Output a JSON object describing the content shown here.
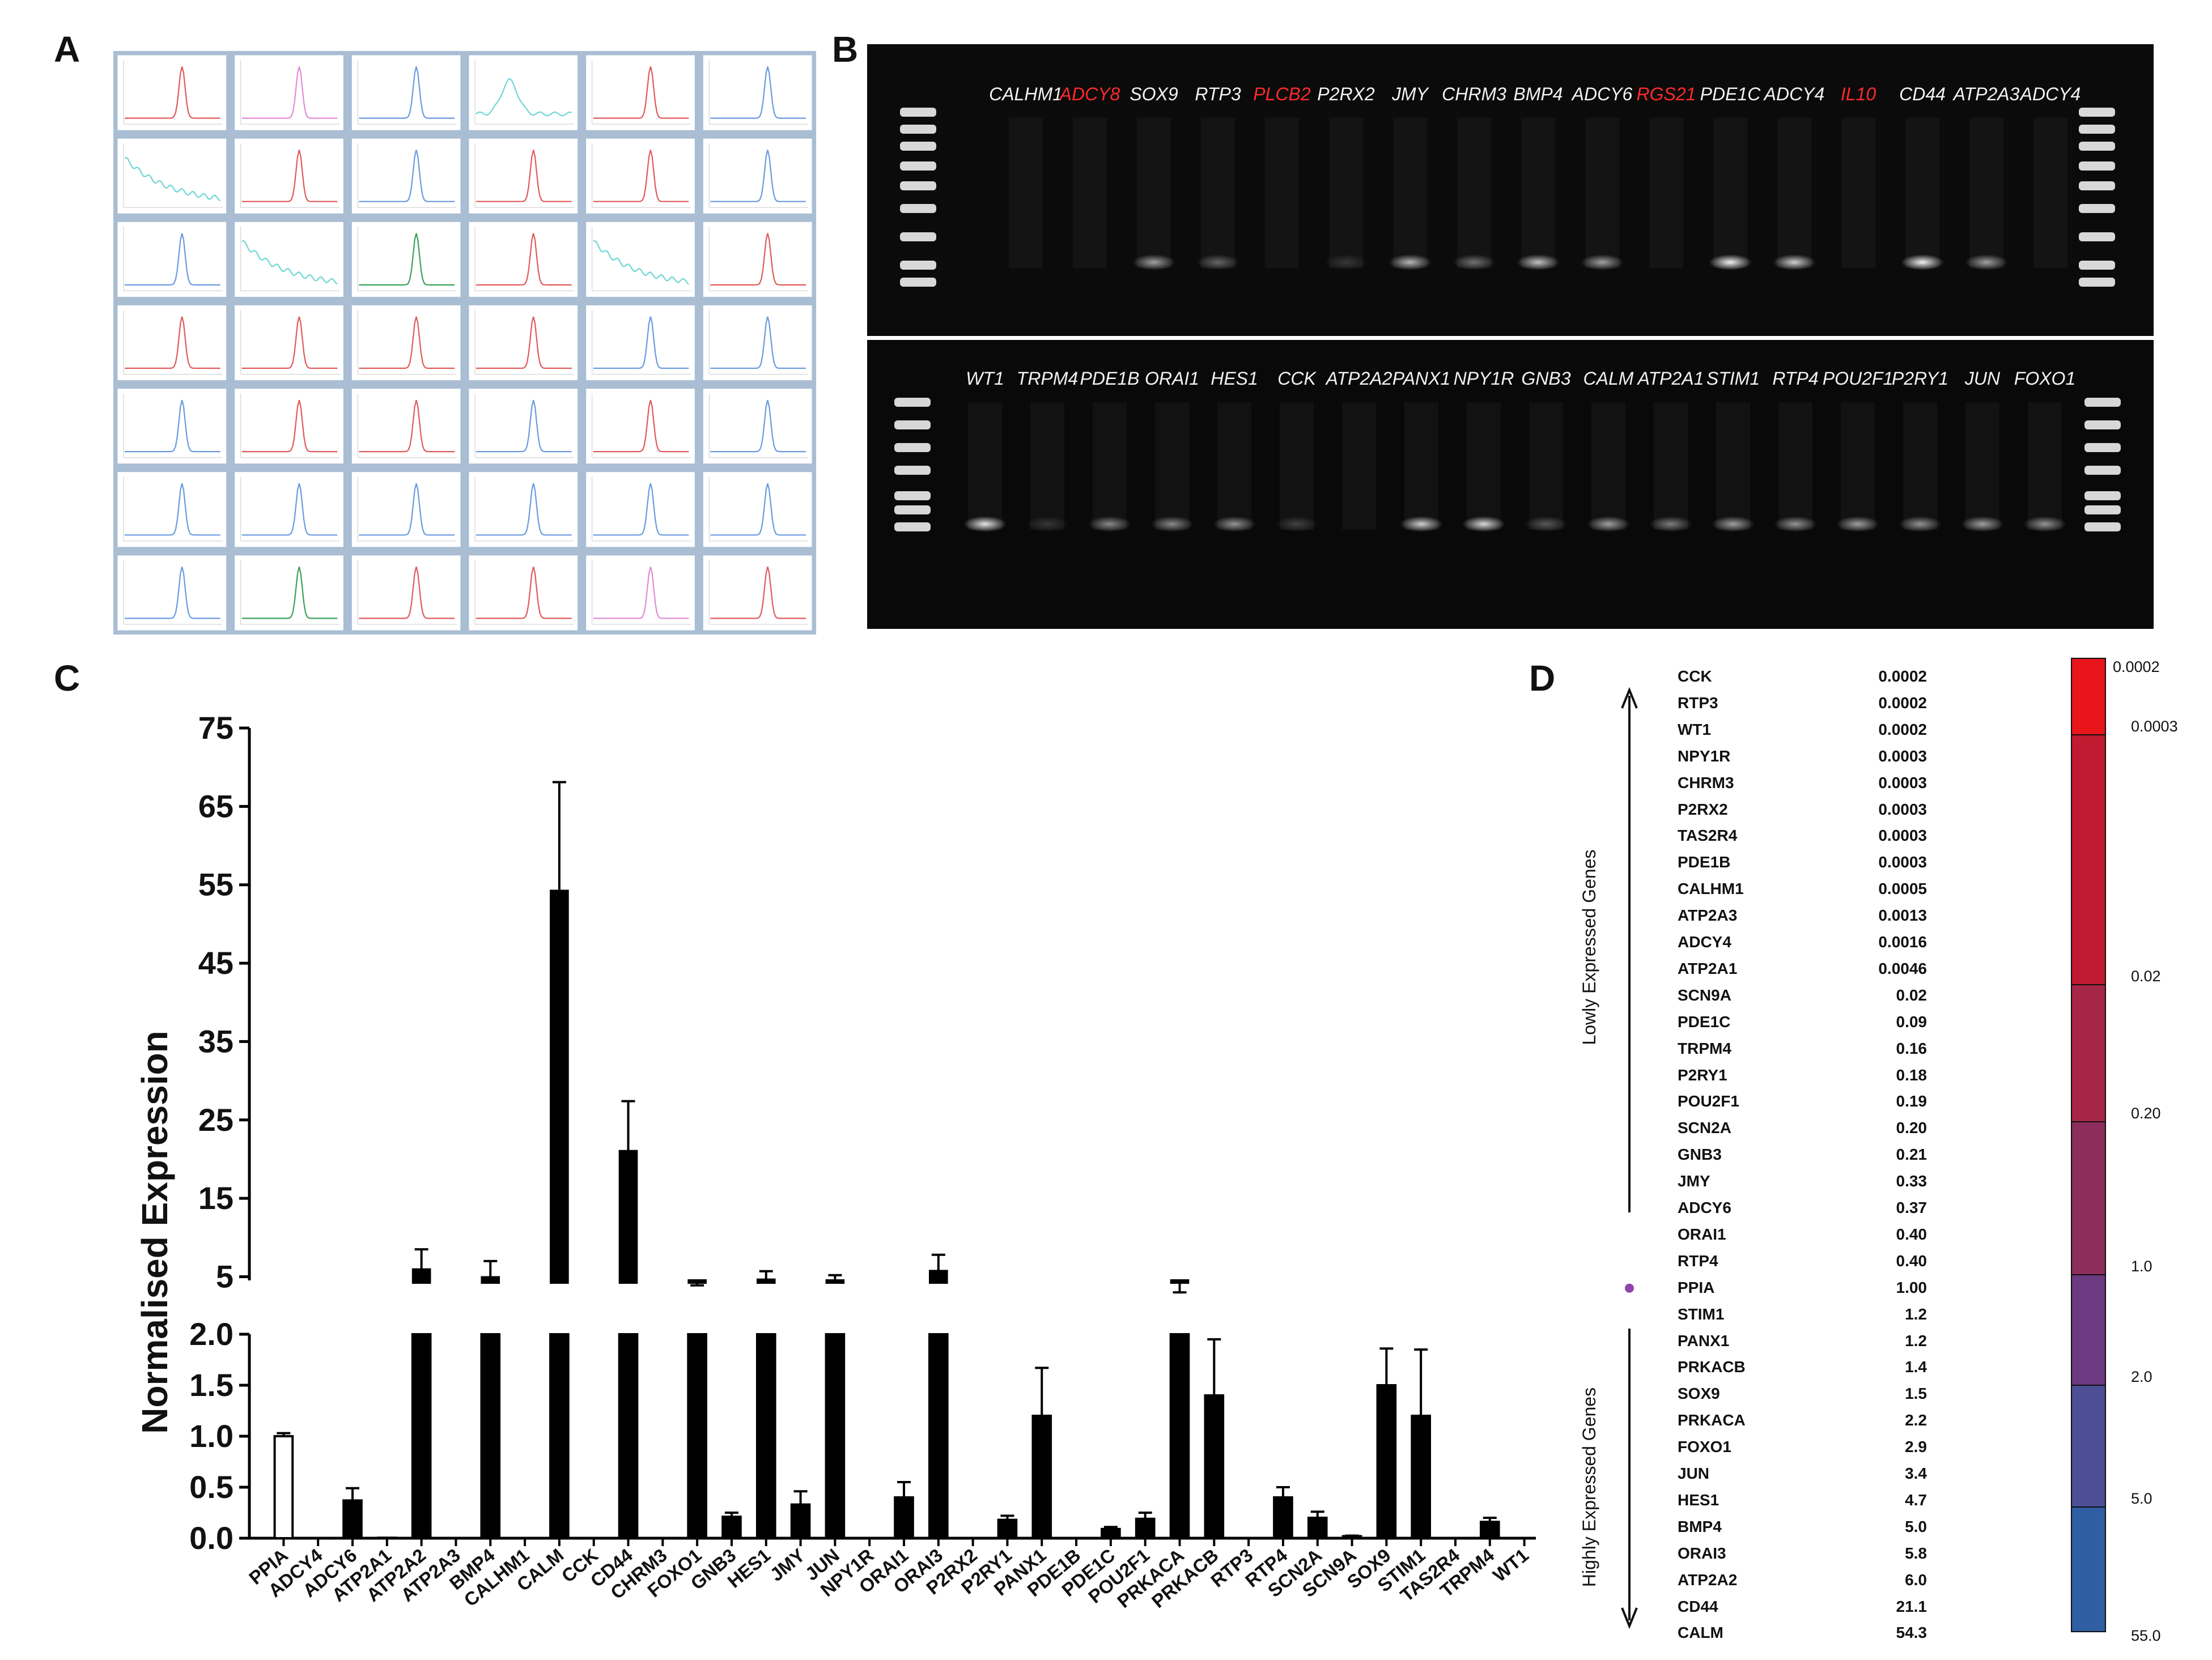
{
  "panels": {
    "a": "A",
    "b": "B",
    "c": "C",
    "d": "D"
  },
  "panel_a": {
    "rows": 7,
    "cols": 6,
    "cells": [
      {
        "color": "#e05a5a",
        "shape": "peak"
      },
      {
        "color": "#e08ad8",
        "shape": "peak"
      },
      {
        "color": "#6a9ae0",
        "shape": "peak"
      },
      {
        "color": "#6fd6d6",
        "shape": "broad"
      },
      {
        "color": "#e05a5a",
        "shape": "peak"
      },
      {
        "color": "#6a9ae0",
        "shape": "peak"
      },
      {
        "color": "#6fd6d6",
        "shape": "decay"
      },
      {
        "color": "#e05a5a",
        "shape": "peak"
      },
      {
        "color": "#6a9ae0",
        "shape": "peak"
      },
      {
        "color": "#e05a5a",
        "shape": "peak"
      },
      {
        "color": "#e05a5a",
        "shape": "peak"
      },
      {
        "color": "#6a9ae0",
        "shape": "peak"
      },
      {
        "color": "#6a9ae0",
        "shape": "peak"
      },
      {
        "color": "#6fd6d6",
        "shape": "decay"
      },
      {
        "color": "#3aa05a",
        "shape": "peak"
      },
      {
        "color": "#e05a5a",
        "shape": "peak"
      },
      {
        "color": "#6fd6d6",
        "shape": "decay"
      },
      {
        "color": "#e05a5a",
        "shape": "peak"
      },
      {
        "color": "#e05a5a",
        "shape": "peak"
      },
      {
        "color": "#e05a5a",
        "shape": "peak"
      },
      {
        "color": "#e05a5a",
        "shape": "peak"
      },
      {
        "color": "#e05a5a",
        "shape": "peak"
      },
      {
        "color": "#6a9ae0",
        "shape": "peak"
      },
      {
        "color": "#6a9ae0",
        "shape": "peak"
      },
      {
        "color": "#6a9ae0",
        "shape": "peak"
      },
      {
        "color": "#e05a5a",
        "shape": "peak"
      },
      {
        "color": "#e05a5a",
        "shape": "peak"
      },
      {
        "color": "#6a9ae0",
        "shape": "peak"
      },
      {
        "color": "#e05a5a",
        "shape": "peak"
      },
      {
        "color": "#6a9ae0",
        "shape": "peak"
      },
      {
        "color": "#6a9ae0",
        "shape": "peak"
      },
      {
        "color": "#6a9ae0",
        "shape": "peak"
      },
      {
        "color": "#6a9ae0",
        "shape": "peak"
      },
      {
        "color": "#6a9ae0",
        "shape": "peak"
      },
      {
        "color": "#6a9ae0",
        "shape": "peak"
      },
      {
        "color": "#6a9ae0",
        "shape": "peak"
      },
      {
        "color": "#6a9ae0",
        "shape": "peak"
      },
      {
        "color": "#3aa05a",
        "shape": "peak"
      },
      {
        "color": "#e05a5a",
        "shape": "peak"
      },
      {
        "color": "#e05a5a",
        "shape": "peak"
      },
      {
        "color": "#e08ad8",
        "shape": "peak"
      },
      {
        "color": "#e05a5a",
        "shape": "peak"
      }
    ]
  },
  "panel_b": {
    "top_lanes": [
      {
        "label": "CALHM1",
        "red": false,
        "band": null
      },
      {
        "label": "ADCY8",
        "red": true,
        "band": null
      },
      {
        "label": "SOX9",
        "red": false,
        "band": 0.6
      },
      {
        "label": "RTP3",
        "red": false,
        "band": 0.35
      },
      {
        "label": "PLCB2",
        "red": true,
        "band": null
      },
      {
        "label": "P2RX2",
        "red": false,
        "band": 0.15
      },
      {
        "label": "JMY",
        "red": false,
        "band": 0.7
      },
      {
        "label": "CHRM3",
        "red": false,
        "band": 0.4
      },
      {
        "label": "BMP4",
        "red": false,
        "band": 0.75
      },
      {
        "label": "ADCY6",
        "red": false,
        "band": 0.6
      },
      {
        "label": "RGS21",
        "red": true,
        "band": null
      },
      {
        "label": "PDE1C",
        "red": false,
        "band": 0.95
      },
      {
        "label": "ADCY4",
        "red": false,
        "band": 0.8
      },
      {
        "label": "IL10",
        "red": true,
        "band": null
      },
      {
        "label": "CD44",
        "red": false,
        "band": 0.95
      },
      {
        "label": "ATP2A3",
        "red": false,
        "band": 0.6
      },
      {
        "label": "ADCY4",
        "red": false,
        "band": null
      }
    ],
    "bottom_lanes": [
      {
        "label": "WT1",
        "red": false,
        "band": 0.9
      },
      {
        "label": "TRPM4",
        "red": false,
        "band": 0.15
      },
      {
        "label": "PDE1B",
        "red": false,
        "band": 0.5
      },
      {
        "label": "ORAI1",
        "red": false,
        "band": 0.5
      },
      {
        "label": "HES1",
        "red": false,
        "band": 0.55
      },
      {
        "label": "CCK",
        "red": false,
        "band": 0.2
      },
      {
        "label": "ATP2A2",
        "red": false,
        "band": null
      },
      {
        "label": "PANX1",
        "red": false,
        "band": 0.8
      },
      {
        "label": "NPY1R",
        "red": false,
        "band": 0.85
      },
      {
        "label": "GNB3",
        "red": false,
        "band": 0.3
      },
      {
        "label": "CALM",
        "red": false,
        "band": 0.6
      },
      {
        "label": "ATP2A1",
        "red": false,
        "band": 0.45
      },
      {
        "label": "STIM1",
        "red": false,
        "band": 0.6
      },
      {
        "label": "RTP4",
        "red": false,
        "band": 0.55
      },
      {
        "label": "POU2F1",
        "red": false,
        "band": 0.6
      },
      {
        "label": "P2RY1",
        "red": false,
        "band": 0.55
      },
      {
        "label": "JUN",
        "red": false,
        "band": 0.6
      },
      {
        "label": "FOXO1",
        "red": false,
        "band": 0.55
      }
    ],
    "label_red_color": "#ff2a2a"
  },
  "chart_data": {
    "type": "bar",
    "ylabel": "Normalised Expression",
    "categories": [
      "PPIA",
      "ADCY4",
      "ADCY6",
      "ATP2A1",
      "ATP2A2",
      "ATP2A3",
      "BMP4",
      "CALHM1",
      "CALM",
      "CCK",
      "CD44",
      "CHRM3",
      "FOXO1",
      "GNB3",
      "HES1",
      "JMY",
      "JUN",
      "NPY1R",
      "ORAI1",
      "ORAI3",
      "P2RX2",
      "P2RY1",
      "PANX1",
      "PDE1B",
      "PDE1C",
      "POU2F1",
      "PRKACA",
      "PRKACB",
      "RTP3",
      "RTP4",
      "SCN2A",
      "SCN9A",
      "SOX9",
      "STIM1",
      "TAS2R4",
      "TRPM4",
      "WT1"
    ],
    "values": [
      1.0,
      0.0016,
      0.37,
      0.0046,
      6.0,
      0.0013,
      5.0,
      0.0005,
      54.3,
      0.0002,
      21.1,
      0.0003,
      2.9,
      0.21,
      4.7,
      0.33,
      3.4,
      0.0003,
      0.4,
      5.8,
      0.0003,
      0.18,
      1.2,
      0.0003,
      0.09,
      0.19,
      2.2,
      1.4,
      0.0002,
      0.4,
      0.2,
      0.02,
      1.5,
      1.2,
      0.0003,
      0.16,
      0.0002
    ],
    "errors": [
      0.03,
      0,
      0.12,
      0,
      2.5,
      0,
      2.0,
      0,
      13.8,
      0,
      6.3,
      0,
      1.0,
      0.04,
      1.0,
      0.13,
      1.8,
      0,
      0.15,
      2.0,
      0,
      0.04,
      0.47,
      0,
      0.02,
      0.06,
      0.8,
      0.55,
      0,
      0.1,
      0.06,
      0.005,
      0.36,
      0.65,
      0,
      0.04,
      0
    ],
    "highlight": {
      "category": "PPIA",
      "fill": "#ffffff"
    },
    "lower_axis": {
      "ylim": [
        0,
        2.0
      ],
      "ticks": [
        "0.0",
        "0.5",
        "1.0",
        "1.5",
        "2.0"
      ]
    },
    "upper_axis": {
      "ylim": [
        2.0,
        75
      ],
      "ticks": [
        "5",
        "15",
        "25",
        "35",
        "45",
        "55",
        "65",
        "75"
      ]
    },
    "bar_color": "#000000"
  },
  "panel_d": {
    "label_low": "Lowly Expressed Genes",
    "label_high": "Highly Expressed Genes",
    "marker_color": "#8e44ad",
    "rows": [
      {
        "gene": "CCK",
        "value": "0.0002"
      },
      {
        "gene": "RTP3",
        "value": "0.0002"
      },
      {
        "gene": "WT1",
        "value": "0.0002"
      },
      {
        "gene": "NPY1R",
        "value": "0.0003"
      },
      {
        "gene": "CHRM3",
        "value": "0.0003"
      },
      {
        "gene": "P2RX2",
        "value": "0.0003"
      },
      {
        "gene": "TAS2R4",
        "value": "0.0003"
      },
      {
        "gene": "PDE1B",
        "value": "0.0003"
      },
      {
        "gene": "CALHM1",
        "value": "0.0005"
      },
      {
        "gene": "ATP2A3",
        "value": "0.0013"
      },
      {
        "gene": "ADCY4",
        "value": "0.0016"
      },
      {
        "gene": "ATP2A1",
        "value": "0.0046"
      },
      {
        "gene": "SCN9A",
        "value": "0.02"
      },
      {
        "gene": "PDE1C",
        "value": "0.09"
      },
      {
        "gene": "TRPM4",
        "value": "0.16"
      },
      {
        "gene": "P2RY1",
        "value": "0.18"
      },
      {
        "gene": "POU2F1",
        "value": "0.19"
      },
      {
        "gene": "SCN2A",
        "value": "0.20"
      },
      {
        "gene": "GNB3",
        "value": "0.21"
      },
      {
        "gene": "JMY",
        "value": "0.33"
      },
      {
        "gene": "ADCY6",
        "value": "0.37"
      },
      {
        "gene": "ORAI1",
        "value": "0.40"
      },
      {
        "gene": "RTP4",
        "value": "0.40"
      },
      {
        "gene": "PPIA",
        "value": "1.00"
      },
      {
        "gene": "STIM1",
        "value": "1.2"
      },
      {
        "gene": "PANX1",
        "value": "1.2"
      },
      {
        "gene": "PRKACB",
        "value": "1.4"
      },
      {
        "gene": "SOX9",
        "value": "1.5"
      },
      {
        "gene": "PRKACA",
        "value": "2.2"
      },
      {
        "gene": "FOXO1",
        "value": "2.9"
      },
      {
        "gene": "JUN",
        "value": "3.4"
      },
      {
        "gene": "HES1",
        "value": "4.7"
      },
      {
        "gene": "BMP4",
        "value": "5.0"
      },
      {
        "gene": "ORAI3",
        "value": "5.8"
      },
      {
        "gene": "ATP2A2",
        "value": "6.0"
      },
      {
        "gene": "CD44",
        "value": "21.1"
      },
      {
        "gene": "CALM",
        "value": "54.3"
      }
    ],
    "scale_segments": [
      {
        "color": "#e8151b"
      },
      {
        "color": "#c01a30"
      },
      {
        "color": "#a52646"
      },
      {
        "color": "#8c2d5c"
      },
      {
        "color": "#6b3a80"
      },
      {
        "color": "#4c4f96"
      },
      {
        "color": "#2f5ea3"
      },
      {
        "color": "#1c5fa8"
      }
    ],
    "scale_labels": [
      "0.0002",
      "0.0003",
      "0.02",
      "0.20",
      "1.0",
      "2.0",
      "5.0",
      "55.0"
    ]
  }
}
